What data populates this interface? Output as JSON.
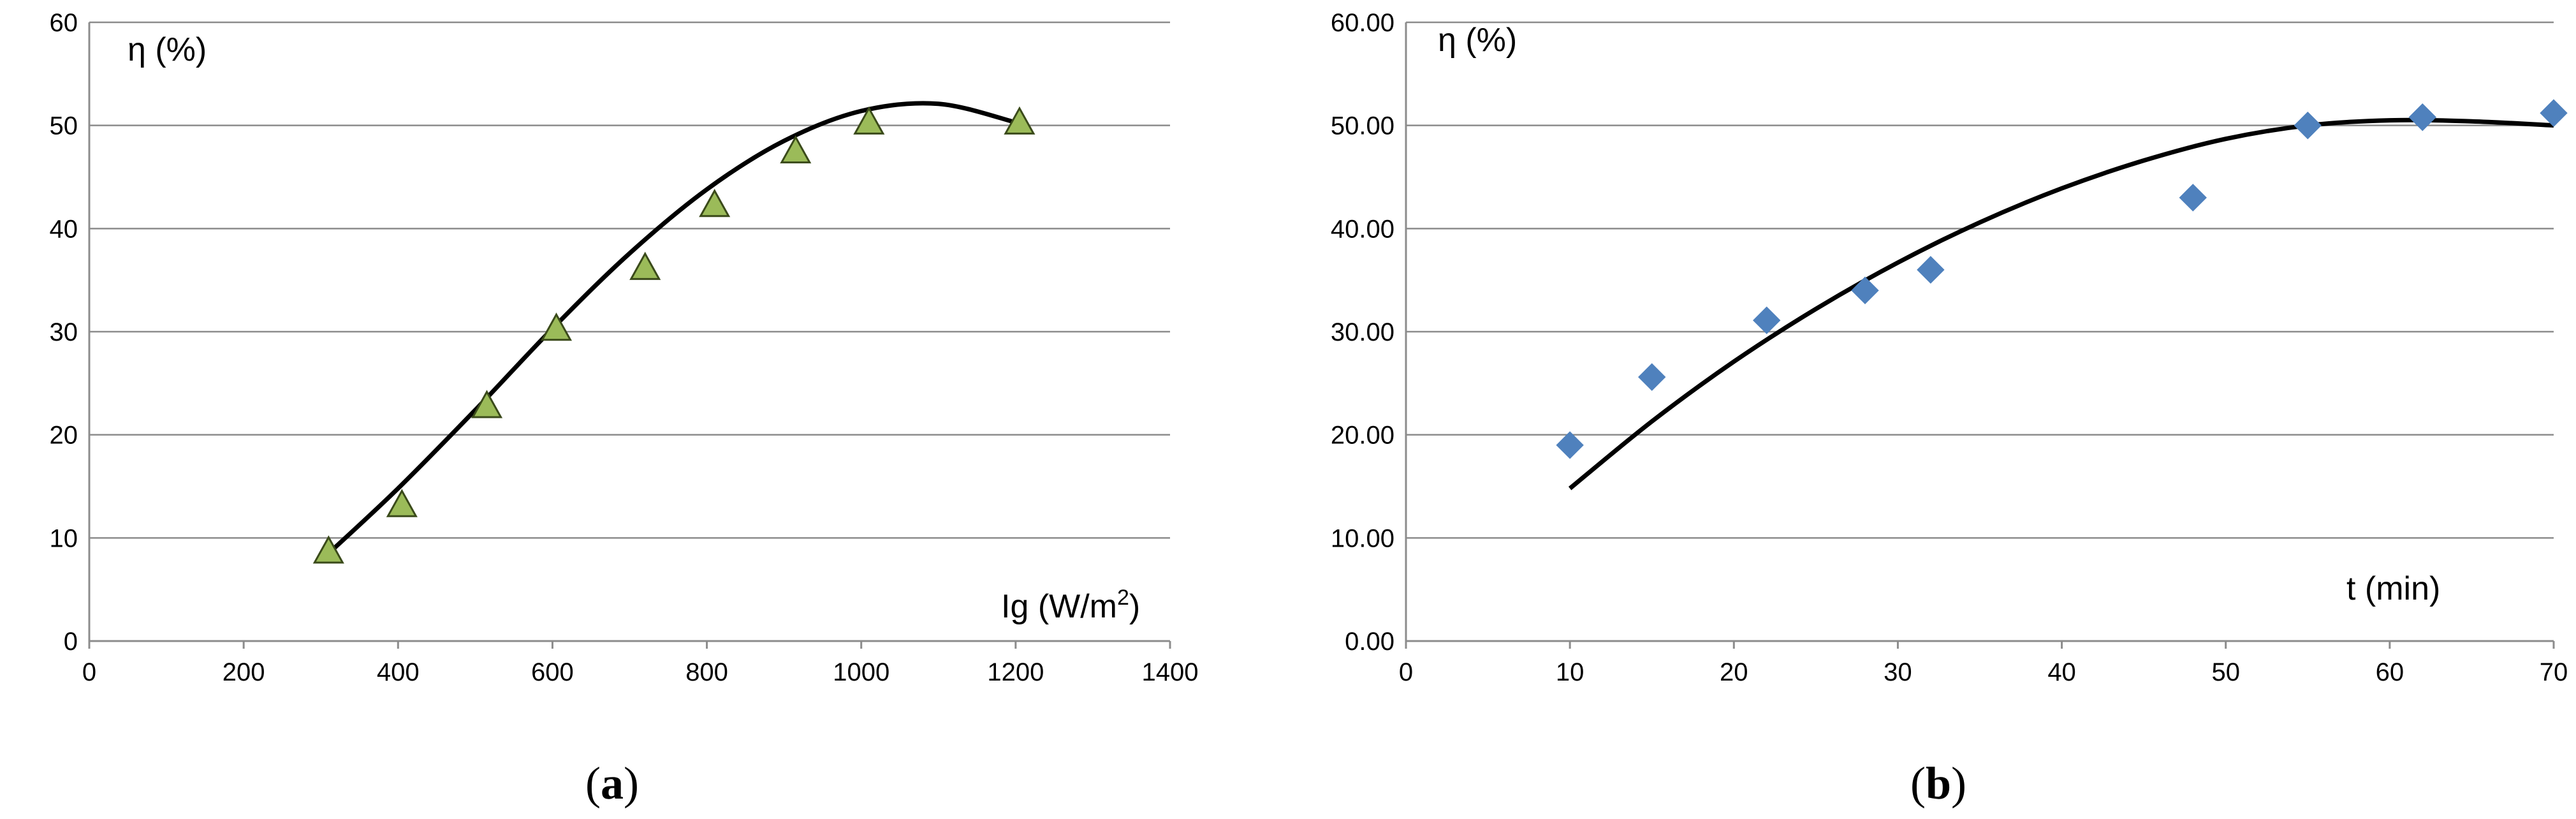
{
  "chart_data": [
    {
      "type": "scatter",
      "panel_label": {
        "open": "(",
        "letter": "a",
        "close": ")"
      },
      "ylabel": "η (%)",
      "xlabel_prefix": "Ig (W/m",
      "xlabel_sup": "2",
      "xlabel_suffix": ")",
      "xlim": [
        0,
        1400
      ],
      "ylim": [
        0,
        60
      ],
      "x_ticks": [
        "0",
        "200",
        "400",
        "600",
        "800",
        "1000",
        "1200",
        "1400"
      ],
      "y_ticks": [
        "0",
        "10",
        "20",
        "30",
        "40",
        "50",
        "60"
      ],
      "grid": true,
      "marker": "triangle",
      "marker_color": "#9bbb59",
      "series": [
        {
          "x": [
            310,
            405,
            515,
            605,
            720,
            810,
            915,
            1010,
            1205
          ],
          "y": [
            8.7,
            13.2,
            22.8,
            30.3,
            36.2,
            42.3,
            47.5,
            50.3,
            50.3
          ]
        }
      ],
      "trendline": {
        "x": [
          310,
          400,
          500,
          600,
          700,
          800,
          900,
          1000,
          1100,
          1200
        ],
        "y": [
          8.5,
          14.8,
          22.4,
          30.3,
          37.6,
          43.8,
          48.5,
          51.4,
          52.1,
          50.3
        ]
      }
    },
    {
      "type": "scatter",
      "panel_label": {
        "open": "(",
        "letter": "b",
        "close": ")"
      },
      "ylabel": "η (%)",
      "xlabel": "t (min)",
      "xlim": [
        0,
        70
      ],
      "ylim": [
        0,
        60
      ],
      "x_ticks": [
        "0",
        "10",
        "20",
        "30",
        "40",
        "50",
        "60",
        "70"
      ],
      "y_ticks": [
        "0.00",
        "10.00",
        "20.00",
        "30.00",
        "40.00",
        "50.00",
        "60.00"
      ],
      "grid": true,
      "marker": "diamond",
      "marker_color": "#4f81bd",
      "series": [
        {
          "x": [
            10,
            15,
            22,
            28,
            32,
            48,
            55,
            62,
            70
          ],
          "y": [
            19.0,
            25.6,
            31.1,
            34.0,
            36.0,
            43.0,
            50.0,
            50.8,
            51.2
          ]
        }
      ],
      "trendline": {
        "x": [
          10,
          15,
          20,
          25,
          30,
          35,
          40,
          45,
          50,
          55,
          60,
          65,
          70
        ],
        "y": [
          14.8,
          21.3,
          27.1,
          32.2,
          36.7,
          40.6,
          43.9,
          46.6,
          48.7,
          50.0,
          50.5,
          50.4,
          50.0
        ]
      }
    }
  ]
}
